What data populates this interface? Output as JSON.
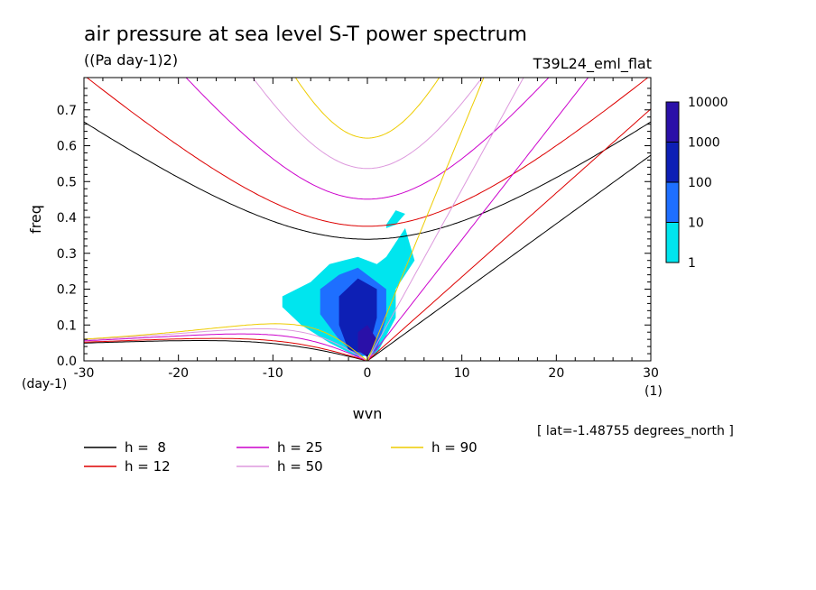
{
  "header": {
    "title": "air pressure at sea level S-T power spectrum",
    "units": "((Pa day-1)2)",
    "experiment": "T39L24_eml_flat",
    "latitude_note": "[ lat=-1.48755 degrees_north ]"
  },
  "chart_data": {
    "type": "heatmap",
    "title": "air pressure at sea level S-T power spectrum",
    "xlabel": "wvn",
    "ylabel": "freq",
    "x_unit": "(1)",
    "y_unit": "(day-1)",
    "xlim": [
      -30,
      30
    ],
    "ylim": [
      0,
      0.79
    ],
    "x_ticks": [
      -30,
      -20,
      -10,
      0,
      10,
      20,
      30
    ],
    "x_tick_labels": [
      "-30",
      "-20",
      "-10",
      "0",
      "10",
      "20",
      "30"
    ],
    "y_ticks": [
      0.0,
      0.1,
      0.2,
      0.3,
      0.4,
      0.5,
      0.6,
      0.7
    ],
    "y_tick_labels": [
      "0.0",
      "0.1",
      "0.2",
      "0.3",
      "0.4",
      "0.5",
      "0.6",
      "0.7"
    ],
    "colorbar": {
      "scale": "log",
      "levels": [
        1,
        10,
        100,
        1000,
        10000
      ],
      "level_labels": [
        "1",
        "10",
        "100",
        "1000",
        "10000"
      ],
      "colors": [
        "#00e5ee",
        "#1e6fff",
        "#0d1fb5",
        "#2a10a8"
      ]
    },
    "dispersion_curves": [
      {
        "label": "h =  8",
        "h": 8,
        "color": "#000000"
      },
      {
        "label": "h = 12",
        "h": 12,
        "color": "#dd0000"
      },
      {
        "label": "h = 25",
        "h": 25,
        "color": "#cc00cc"
      },
      {
        "label": "h = 50",
        "h": 50,
        "color": "#dd99dd"
      },
      {
        "label": "h = 90",
        "h": 90,
        "color": "#eecc00"
      }
    ],
    "power_regions": [
      {
        "level": 1,
        "x": [
          -9,
          -6,
          -4,
          -1,
          1,
          2,
          4,
          5,
          3,
          3,
          1,
          -1,
          -4,
          -7,
          -9
        ],
        "y": [
          0.18,
          0.22,
          0.27,
          0.29,
          0.27,
          0.29,
          0.37,
          0.28,
          0.2,
          0.12,
          0.02,
          0.01,
          0.05,
          0.1,
          0.15
        ]
      },
      {
        "level": 1,
        "x": [
          2,
          3,
          4,
          4,
          3,
          2
        ],
        "y": [
          0.28,
          0.33,
          0.36,
          0.3,
          0.26,
          0.25
        ]
      },
      {
        "level": 1,
        "x": [
          2,
          3,
          4,
          3,
          2
        ],
        "y": [
          0.38,
          0.42,
          0.41,
          0.38,
          0.37
        ]
      },
      {
        "level": 10,
        "x": [
          -5,
          -3,
          -1,
          1,
          2,
          2,
          1,
          -1,
          -3,
          -5
        ],
        "y": [
          0.2,
          0.24,
          0.26,
          0.22,
          0.2,
          0.12,
          0.03,
          0.01,
          0.06,
          0.13
        ]
      },
      {
        "level": 100,
        "x": [
          -3,
          -1,
          1,
          1,
          0,
          -2,
          -3
        ],
        "y": [
          0.18,
          0.23,
          0.2,
          0.12,
          0.02,
          0.03,
          0.1
        ]
      },
      {
        "level": 1000,
        "x": [
          -1,
          0,
          1,
          0,
          -1
        ],
        "y": [
          0.08,
          0.1,
          0.06,
          0.01,
          0.03
        ]
      }
    ]
  },
  "legend": {
    "items": [
      {
        "label": "h =  8",
        "color": "#000000"
      },
      {
        "label": "h = 12",
        "color": "#dd0000"
      },
      {
        "label": "h = 25",
        "color": "#cc00cc"
      },
      {
        "label": "h = 50",
        "color": "#dd99dd"
      },
      {
        "label": "h = 90",
        "color": "#eecc00"
      }
    ]
  }
}
